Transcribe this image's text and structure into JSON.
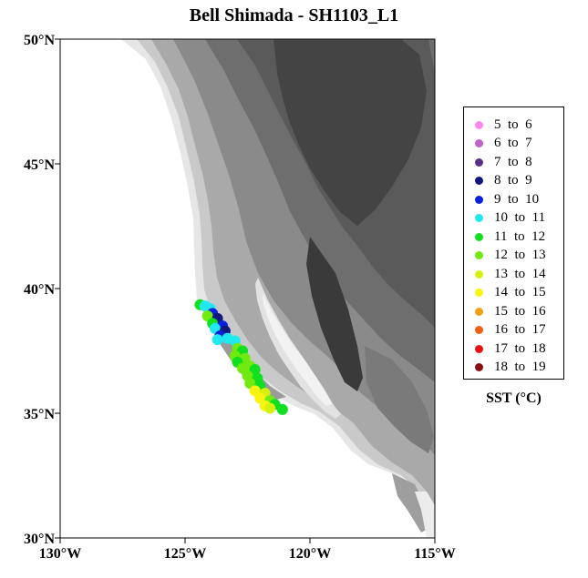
{
  "title": "Bell Shimada - SH1103_L1",
  "map": {
    "lat_range": [
      30,
      50
    ],
    "lon_range": [
      -130,
      -115
    ],
    "lat_ticks": [
      {
        "value": 50,
        "label": "50°N"
      },
      {
        "value": 45,
        "label": "45°N"
      },
      {
        "value": 40,
        "label": "40°N"
      },
      {
        "value": 35,
        "label": "35°N"
      },
      {
        "value": 30,
        "label": "30°N"
      }
    ],
    "lon_ticks": [
      {
        "value": -130,
        "label": "130°W"
      },
      {
        "value": -125,
        "label": "125°W"
      },
      {
        "value": -120,
        "label": "120°W"
      },
      {
        "value": -115,
        "label": "115°W"
      }
    ],
    "land_shading": "grayscale topography",
    "ocean_color": "#ffffff"
  },
  "legend": {
    "caption": "SST (°C)",
    "entries": [
      {
        "label": "5  to  6",
        "color": "#ff88ee"
      },
      {
        "label": "6  to  7",
        "color": "#c060c8"
      },
      {
        "label": "7  to  8",
        "color": "#5a2e8a"
      },
      {
        "label": "8  to  9",
        "color": "#101880"
      },
      {
        "label": "9  to  10",
        "color": "#0a20e0"
      },
      {
        "label": "10  to  11",
        "color": "#20e8f0"
      },
      {
        "label": "11  to  12",
        "color": "#10e020"
      },
      {
        "label": "12  to  13",
        "color": "#70ea10"
      },
      {
        "label": "13  to  14",
        "color": "#d8f010"
      },
      {
        "label": "14  to  15",
        "color": "#f8f410"
      },
      {
        "label": "15  to  16",
        "color": "#f0a010"
      },
      {
        "label": "16  to  17",
        "color": "#f06010"
      },
      {
        "label": "17  to  18",
        "color": "#e81010"
      },
      {
        "label": "18  to  19",
        "color": "#8a1010"
      }
    ]
  },
  "track_points": [
    {
      "lon": -124.4,
      "lat": 39.35,
      "sst": 11.5
    },
    {
      "lon": -124.2,
      "lat": 39.3,
      "sst": 10.5
    },
    {
      "lon": -124.0,
      "lat": 39.2,
      "sst": 10.5
    },
    {
      "lon": -123.9,
      "lat": 39.0,
      "sst": 9.5
    },
    {
      "lon": -124.1,
      "lat": 38.9,
      "sst": 12.5
    },
    {
      "lon": -123.7,
      "lat": 38.8,
      "sst": 8.5
    },
    {
      "lon": -123.9,
      "lat": 38.6,
      "sst": 11.5
    },
    {
      "lon": -123.5,
      "lat": 38.5,
      "sst": 9.5
    },
    {
      "lon": -123.8,
      "lat": 38.4,
      "sst": 10.5
    },
    {
      "lon": -123.4,
      "lat": 38.3,
      "sst": 8.5
    },
    {
      "lon": -123.6,
      "lat": 38.1,
      "sst": 9.5
    },
    {
      "lon": -123.3,
      "lat": 38.0,
      "sst": 10.5
    },
    {
      "lon": -123.7,
      "lat": 37.95,
      "sst": 10.5
    },
    {
      "lon": -123.0,
      "lat": 37.9,
      "sst": 10.5
    },
    {
      "lon": -122.9,
      "lat": 37.6,
      "sst": 12.5
    },
    {
      "lon": -122.7,
      "lat": 37.5,
      "sst": 11.5
    },
    {
      "lon": -123.0,
      "lat": 37.3,
      "sst": 12.5
    },
    {
      "lon": -122.6,
      "lat": 37.2,
      "sst": 12.5
    },
    {
      "lon": -122.9,
      "lat": 37.05,
      "sst": 11.5
    },
    {
      "lon": -122.4,
      "lat": 36.9,
      "sst": 12.5
    },
    {
      "lon": -122.7,
      "lat": 36.8,
      "sst": 12.5
    },
    {
      "lon": -122.2,
      "lat": 36.75,
      "sst": 11.5
    },
    {
      "lon": -122.5,
      "lat": 36.5,
      "sst": 12.5
    },
    {
      "lon": -122.1,
      "lat": 36.4,
      "sst": 11.5
    },
    {
      "lon": -122.4,
      "lat": 36.2,
      "sst": 12.5
    },
    {
      "lon": -122.0,
      "lat": 36.1,
      "sst": 11.5
    },
    {
      "lon": -122.2,
      "lat": 35.9,
      "sst": 14.5
    },
    {
      "lon": -121.8,
      "lat": 35.8,
      "sst": 13.5
    },
    {
      "lon": -122.0,
      "lat": 35.6,
      "sst": 14.5
    },
    {
      "lon": -121.6,
      "lat": 35.5,
      "sst": 12.5
    },
    {
      "lon": -121.8,
      "lat": 35.3,
      "sst": 14.5
    },
    {
      "lon": -121.4,
      "lat": 35.35,
      "sst": 11.5
    },
    {
      "lon": -121.6,
      "lat": 35.2,
      "sst": 13.5
    },
    {
      "lon": -121.1,
      "lat": 35.15,
      "sst": 11.5
    }
  ]
}
